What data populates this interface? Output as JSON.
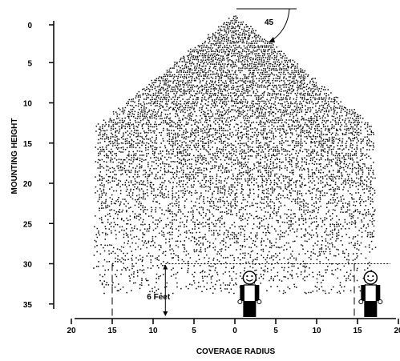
{
  "chart_data": {
    "type": "coverage-diagram",
    "xlabel": "COVERAGE RADIUS",
    "ylabel": "MOUNTING HEIGHT",
    "x_tick_labels": [
      "20",
      "15",
      "10",
      "5",
      "0",
      "5",
      "10",
      "15",
      "20"
    ],
    "y_ticks": [
      0,
      5,
      10,
      15,
      20,
      25,
      30,
      35
    ],
    "xlim": [
      -20,
      20
    ],
    "ylim": [
      0,
      35
    ],
    "cone_angle_label": "45",
    "cone_angle_degrees": 45,
    "person_height_label": "6 Feet",
    "person_height_ft": 6,
    "coverage_radius_ft": 15,
    "mounting_height_ft": 30.5,
    "shoulder_height_ft": 14,
    "colors": {
      "ink": "#000000",
      "background": "#ffffff"
    },
    "icons": [
      "person-icon",
      "person-icon"
    ]
  }
}
